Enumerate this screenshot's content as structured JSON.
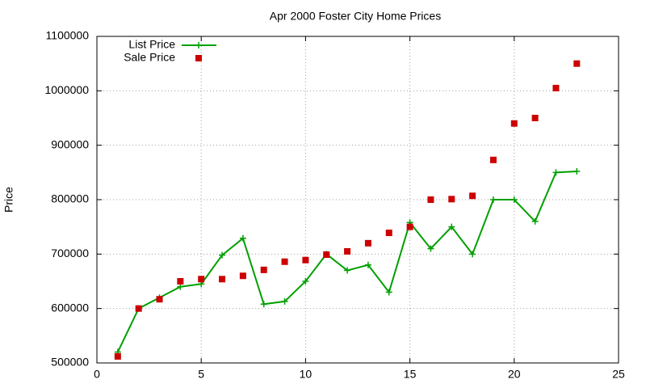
{
  "chart_data": {
    "type": "line",
    "title": "Apr 2000 Foster City Home Prices",
    "y_label": "Price",
    "x": [
      1,
      2,
      3,
      4,
      5,
      6,
      7,
      8,
      9,
      10,
      11,
      12,
      13,
      14,
      15,
      16,
      17,
      18,
      19,
      20,
      21,
      22,
      23
    ],
    "series": [
      {
        "name": "List Price",
        "color": "#00a000",
        "style": "linespoints",
        "values": [
          520000,
          600000,
          620000,
          640000,
          645000,
          698000,
          729000,
          608000,
          613000,
          650000,
          700000,
          670000,
          680000,
          630000,
          758000,
          710000,
          750000,
          700000,
          800000,
          800000,
          760000,
          850000,
          852000
        ]
      },
      {
        "name": "Sale Price",
        "color": "#cc0000",
        "style": "points",
        "values": [
          512000,
          600000,
          617000,
          650000,
          654000,
          654000,
          660000,
          671000,
          686000,
          689000,
          699000,
          705000,
          720000,
          739000,
          750000,
          800000,
          801000,
          807000,
          873000,
          940000,
          950000,
          1005000,
          1050000
        ]
      }
    ],
    "xlim": [
      0,
      25
    ],
    "xticks": [
      0,
      5,
      10,
      15,
      20,
      25
    ],
    "ylim": [
      500000,
      1100000
    ],
    "yticks": [
      500000,
      600000,
      700000,
      800000,
      900000,
      1000000,
      1100000
    ],
    "grid": true,
    "legend": "top-left"
  }
}
